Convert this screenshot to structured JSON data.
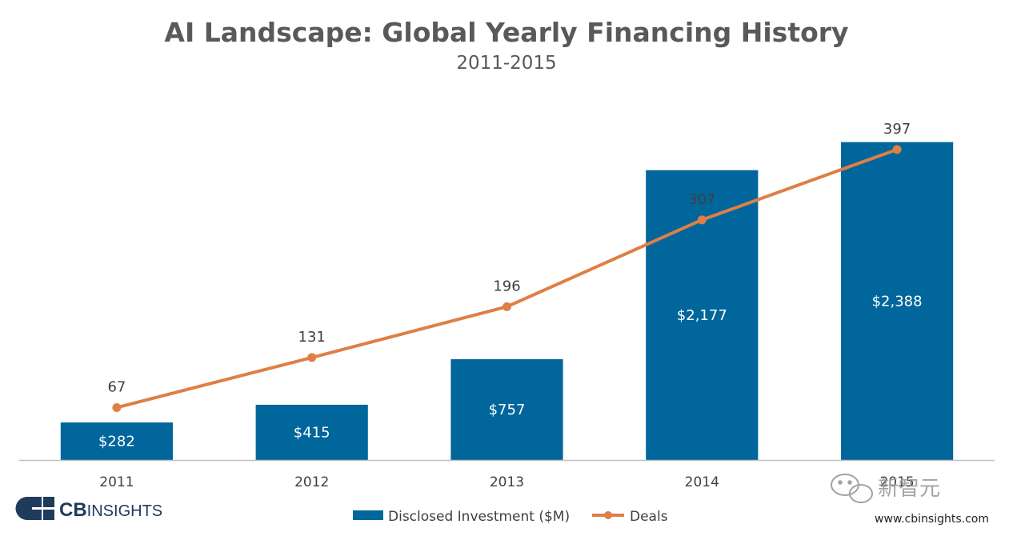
{
  "chart_data": {
    "type": "bar",
    "title": "AI Landscape: Global Yearly Financing History",
    "subtitle": "2011-2015",
    "categories": [
      "2011",
      "2012",
      "2013",
      "2014",
      "2015"
    ],
    "series": [
      {
        "name": "Disclosed Investment ($M)",
        "kind": "bar",
        "axis": "left",
        "values": [
          282,
          415,
          757,
          2177,
          2388
        ],
        "labels": [
          "$282",
          "$415",
          "$757",
          "$2,177",
          "$2,388"
        ],
        "color": "#00669b"
      },
      {
        "name": "Deals",
        "kind": "line",
        "axis": "right",
        "values": [
          67,
          131,
          196,
          307,
          397
        ],
        "labels": [
          "67",
          "131",
          "196",
          "307",
          "397"
        ],
        "color": "#de7f45"
      }
    ],
    "ylim_left": [
      0,
      2644
    ],
    "ylim_right": [
      0,
      450
    ],
    "legend_position": "bottom-center",
    "grid": false
  },
  "brand": {
    "logo_prefix": "CB",
    "logo_suffix": "INSIGHTS",
    "website": "www.cbinsights.com",
    "watermark": "新智元",
    "logo_color": "#1f3b5c"
  }
}
